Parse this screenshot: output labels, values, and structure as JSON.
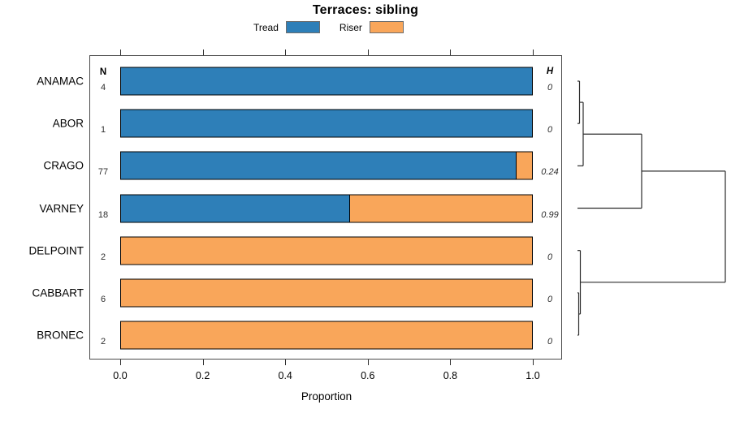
{
  "chart_data": {
    "type": "bar",
    "orientation": "horizontal",
    "stacked": true,
    "title": "Terraces: sibling",
    "xlabel": "Proportion",
    "categories": [
      "ANAMAC",
      "ABOR",
      "CRAGO",
      "VARNEY",
      "DELPOINT",
      "CABBART",
      "BRONEC"
    ],
    "counts_header": "N",
    "counts": [
      4,
      1,
      77,
      18,
      2,
      6,
      2
    ],
    "h_header": "H",
    "h_values": [
      "0",
      "0",
      "0.24",
      "0.99",
      "0",
      "0",
      "0"
    ],
    "series": [
      {
        "name": "Tread",
        "color": "#2e7fb8",
        "values": [
          1.0,
          1.0,
          0.96,
          0.555,
          0.0,
          0.0,
          0.0
        ]
      },
      {
        "name": "Riser",
        "color": "#f9a65a",
        "values": [
          0.0,
          0.0,
          0.04,
          0.445,
          1.0,
          1.0,
          1.0
        ]
      }
    ],
    "xticks": [
      0.0,
      0.2,
      0.4,
      0.6,
      0.8,
      1.0
    ],
    "xtick_labels": [
      "0.0",
      "0.2",
      "0.4",
      "0.6",
      "0.8",
      "1.0"
    ],
    "xlim": [
      0,
      1
    ],
    "grid": false,
    "legend_position": "top-center",
    "legend_entries": [
      "Tread",
      "Riser"
    ],
    "colors": {
      "tread": "#2e7fb8",
      "riser": "#f9a65a",
      "bar_border": "#000000",
      "box_border": "#4a4a4a",
      "dendrogram_line": "#2b2b2b"
    },
    "dendrogram": {
      "side": "right",
      "tree": {
        "h": 182,
        "children": [
          {
            "h": 79,
            "children": [
              {
                "h": 7,
                "children": [
                  {
                    "h": 2.5,
                    "children": [
                      {
                        "leaf": 0
                      },
                      {
                        "leaf": 1
                      }
                    ]
                  },
                  {
                    "leaf": 2
                  }
                ]
              },
              {
                "leaf": 3
              }
            ]
          },
          {
            "h": 3.5,
            "children": [
              {
                "leaf": 4
              },
              {
                "h": 1.5,
                "children": [
                  {
                    "leaf": 5
                  },
                  {
                    "leaf": 6
                  }
                ]
              }
            ]
          }
        ]
      }
    }
  }
}
